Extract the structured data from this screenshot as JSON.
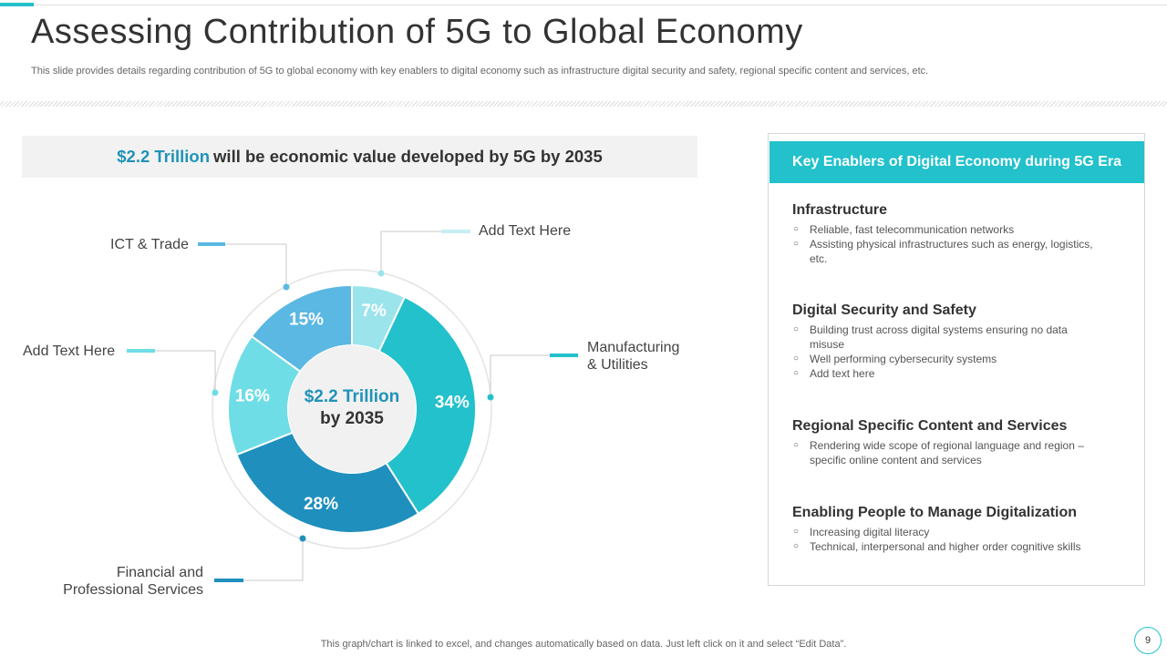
{
  "slide": {
    "title": "Assessing Contribution of 5G to Global Economy",
    "subtitle": "This slide provides details regarding contribution of 5G to global economy with key enablers to digital economy such as infrastructure digital security and safety, regional specific content and services, etc.",
    "headline": {
      "value": "$2.2 Trillion",
      "text": "will be economic value developed by 5G by 2035"
    },
    "footer": "This graph/chart is linked to excel, and changes automatically based on data. Just left click on it and select “Edit Data”.",
    "page_number": "9"
  },
  "chart_data": {
    "type": "pie",
    "style": "donut",
    "center_label": {
      "value": "$2.2 Trillion",
      "sub": "by 2035"
    },
    "series": [
      {
        "name": "Add Text Here",
        "value": 7,
        "label": "7%",
        "color": "#9be4ec"
      },
      {
        "name": "Manufacturing & Utilities",
        "value": 34,
        "label": "34%",
        "color": "#22c1cb"
      },
      {
        "name": "Financial and Professional Services",
        "value": 28,
        "label": "28%",
        "color": "#1f8fbe"
      },
      {
        "name": "Add Text Here",
        "value": 16,
        "label": "16%",
        "color": "#6fdde6"
      },
      {
        "name": "ICT & Trade",
        "value": 15,
        "label": "15%",
        "color": "#5ab8e2"
      }
    ]
  },
  "callouts": {
    "ict": "ICT & Trade",
    "add_top": "Add Text Here",
    "add_left": "Add Text Here",
    "mfg_line1": "Manufacturing",
    "mfg_line2": "& Utilities",
    "fin_line1": "Financial and",
    "fin_line2": "Professional Services"
  },
  "enablers_panel": {
    "header": "Key Enablers of Digital Economy during 5G Era",
    "items": [
      {
        "title": "Infrastructure",
        "points": [
          "Reliable, fast telecommunication networks",
          "Assisting physical infrastructures such as energy, logistics, etc."
        ]
      },
      {
        "title": "Digital Security and Safety",
        "points": [
          "Building trust across digital systems ensuring no data misuse",
          "Well performing cybersecurity systems",
          "Add text here"
        ]
      },
      {
        "title": "Regional Specific Content and Services",
        "points": [
          "Rendering wide scope of regional language and region – specific online content and services"
        ]
      },
      {
        "title": "Enabling People to Manage Digitalization",
        "points": [
          "Increasing digital literacy",
          "Technical, interpersonal and higher order cognitive skills"
        ]
      }
    ]
  },
  "theme": {
    "accent": "#22c1cb",
    "dark_blue": "#1f93b8"
  }
}
